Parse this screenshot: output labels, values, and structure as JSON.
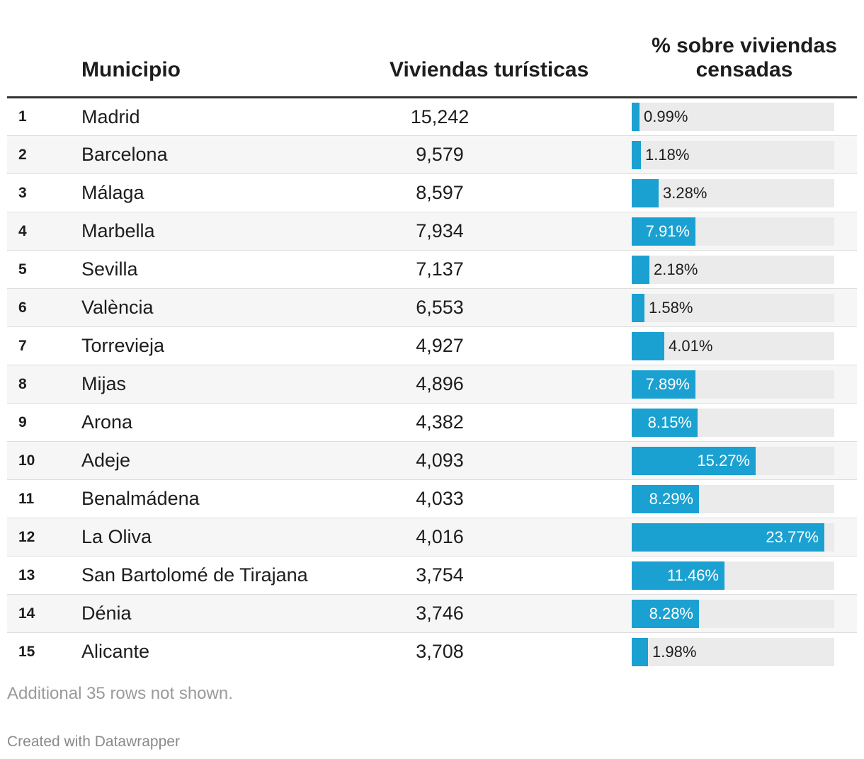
{
  "headers": {
    "rank": "",
    "name": "Municipio",
    "count": "Viviendas turísticas",
    "pct": "% sobre viviendas censadas"
  },
  "footnote": "Additional 35 rows not shown.",
  "credit": "Created with Datawrapper",
  "colors": {
    "bar": "#1aa1d1",
    "track": "#ebebeb"
  },
  "chart_data": {
    "type": "table",
    "bar_max": 25,
    "columns": [
      "",
      "Municipio",
      "Viviendas turísticas",
      "% sobre viviendas censadas"
    ],
    "rows": [
      {
        "rank": "1",
        "name": "Madrid",
        "count": "15,242",
        "pct": 0.99,
        "pct_label": "0.99%"
      },
      {
        "rank": "2",
        "name": "Barcelona",
        "count": "9,579",
        "pct": 1.18,
        "pct_label": "1.18%"
      },
      {
        "rank": "3",
        "name": "Málaga",
        "count": "8,597",
        "pct": 3.28,
        "pct_label": "3.28%"
      },
      {
        "rank": "4",
        "name": "Marbella",
        "count": "7,934",
        "pct": 7.91,
        "pct_label": "7.91%"
      },
      {
        "rank": "5",
        "name": "Sevilla",
        "count": "7,137",
        "pct": 2.18,
        "pct_label": "2.18%"
      },
      {
        "rank": "6",
        "name": "València",
        "count": "6,553",
        "pct": 1.58,
        "pct_label": "1.58%"
      },
      {
        "rank": "7",
        "name": "Torrevieja",
        "count": "4,927",
        "pct": 4.01,
        "pct_label": "4.01%"
      },
      {
        "rank": "8",
        "name": "Mijas",
        "count": "4,896",
        "pct": 7.89,
        "pct_label": "7.89%"
      },
      {
        "rank": "9",
        "name": "Arona",
        "count": "4,382",
        "pct": 8.15,
        "pct_label": "8.15%"
      },
      {
        "rank": "10",
        "name": "Adeje",
        "count": "4,093",
        "pct": 15.27,
        "pct_label": "15.27%"
      },
      {
        "rank": "11",
        "name": "Benalmádena",
        "count": "4,033",
        "pct": 8.29,
        "pct_label": "8.29%"
      },
      {
        "rank": "12",
        "name": "La Oliva",
        "count": "4,016",
        "pct": 23.77,
        "pct_label": "23.77%"
      },
      {
        "rank": "13",
        "name": "San Bartolomé de Tirajana",
        "count": "3,754",
        "pct": 11.46,
        "pct_label": "11.46%"
      },
      {
        "rank": "14",
        "name": "Dénia",
        "count": "3,746",
        "pct": 8.28,
        "pct_label": "8.28%"
      },
      {
        "rank": "15",
        "name": "Alicante",
        "count": "3,708",
        "pct": 1.98,
        "pct_label": "1.98%"
      }
    ]
  }
}
